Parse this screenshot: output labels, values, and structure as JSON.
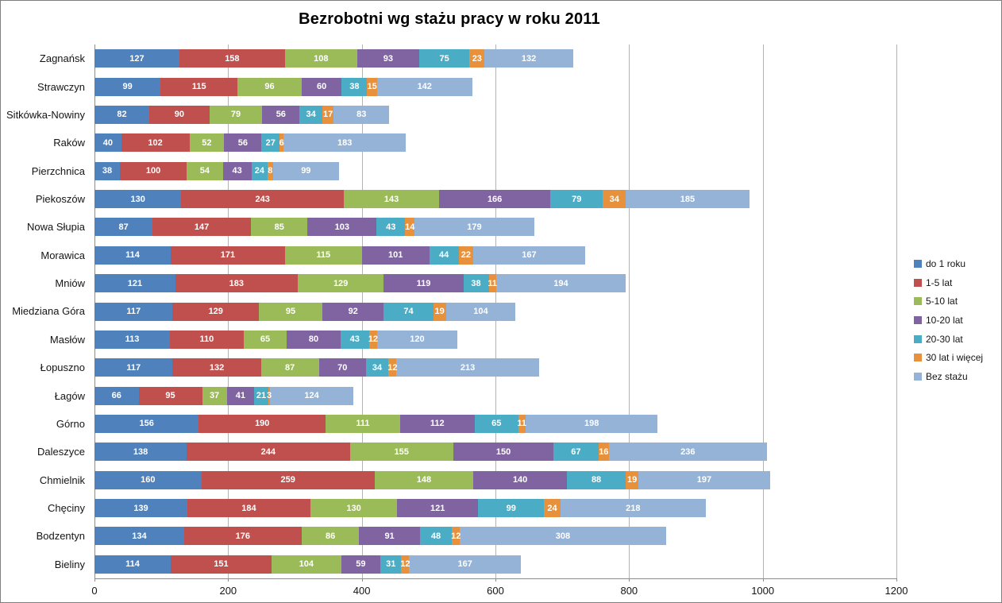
{
  "chart_data": {
    "type": "bar",
    "orientation": "horizontal-stacked",
    "title": "Bezrobotni wg stażu pracy w roku 2011",
    "xlim": [
      0,
      1200
    ],
    "x_ticks": [
      0,
      200,
      400,
      600,
      800,
      1000,
      1200
    ],
    "grid": "vertical",
    "legend_position": "right",
    "categories": [
      "Zagnańsk",
      "Strawczyn",
      "Sitkówka-Nowiny",
      "Raków",
      "Pierzchnica",
      "Piekoszów",
      "Nowa Słupia",
      "Morawica",
      "Mniów",
      "Miedziana Góra",
      "Masłów",
      "Łopuszno",
      "Łagów",
      "Górno",
      "Daleszyce",
      "Chmielnik",
      "Chęciny",
      "Bodzentyn",
      "Bieliny"
    ],
    "series": [
      {
        "name": "do 1 roku",
        "color": "#4F81BD",
        "values": [
          127,
          99,
          82,
          40,
          38,
          130,
          87,
          114,
          121,
          117,
          113,
          117,
          66,
          156,
          138,
          160,
          139,
          134,
          114
        ]
      },
      {
        "name": "1-5 lat",
        "color": "#C0504D",
        "values": [
          158,
          115,
          90,
          102,
          100,
          243,
          147,
          171,
          183,
          129,
          110,
          132,
          95,
          190,
          244,
          259,
          184,
          176,
          151
        ]
      },
      {
        "name": "5-10 lat",
        "color": "#9BBB59",
        "values": [
          108,
          96,
          79,
          52,
          54,
          143,
          85,
          115,
          129,
          95,
          65,
          87,
          37,
          111,
          155,
          148,
          130,
          86,
          104
        ]
      },
      {
        "name": "10-20 lat",
        "color": "#8064A2",
        "values": [
          93,
          60,
          56,
          56,
          43,
          166,
          103,
          101,
          119,
          92,
          80,
          70,
          41,
          112,
          150,
          140,
          121,
          91,
          59
        ]
      },
      {
        "name": "20-30 lat",
        "color": "#4BACC6",
        "values": [
          75,
          38,
          34,
          27,
          24,
          79,
          43,
          44,
          38,
          74,
          43,
          34,
          21,
          65,
          67,
          88,
          99,
          48,
          31
        ]
      },
      {
        "name": "30 lat i więcej",
        "color": "#E8913D",
        "values": [
          23,
          15,
          17,
          6,
          8,
          34,
          14,
          22,
          11,
          19,
          12,
          12,
          3,
          11,
          16,
          19,
          24,
          12,
          12
        ]
      },
      {
        "name": "Bez stażu",
        "color": "#95B3D7",
        "values": [
          132,
          142,
          83,
          183,
          99,
          185,
          179,
          167,
          194,
          104,
          120,
          213,
          124,
          198,
          236,
          197,
          218,
          308,
          167
        ]
      }
    ]
  }
}
